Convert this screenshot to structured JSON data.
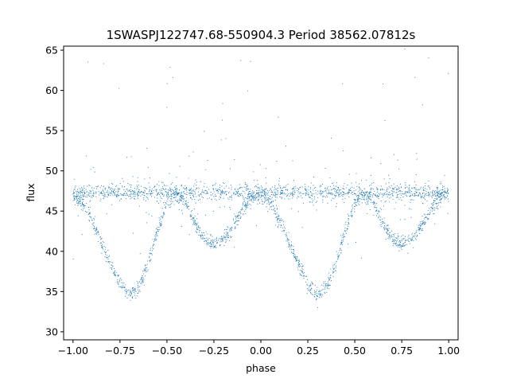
{
  "chart_data": {
    "type": "scatter",
    "title": "1SWASPJ122747.68-550904.3 Period 38562.07812s",
    "xlabel": "phase",
    "ylabel": "flux",
    "xlim": [
      -1.05,
      1.05
    ],
    "ylim": [
      29.0,
      65.5
    ],
    "x_ticks": [
      -1.0,
      -0.75,
      -0.5,
      -0.25,
      0.0,
      0.25,
      0.5,
      0.75,
      1.0
    ],
    "x_tick_labels": [
      "−1.00",
      "−0.75",
      "−0.50",
      "−0.25",
      "0.00",
      "0.25",
      "0.50",
      "0.75",
      "1.00"
    ],
    "y_ticks": [
      30,
      35,
      40,
      45,
      50,
      55,
      60,
      65
    ],
    "y_tick_labels": [
      "30",
      "35",
      "40",
      "45",
      "50",
      "55",
      "60",
      "65"
    ],
    "grid": false,
    "legend": "none",
    "marker_color": "#1f77b4",
    "series": [
      {
        "name": "",
        "baseline_flux": 47.3,
        "points_per_unit_phase_sampled": 1,
        "profile_phase": [
          -1.0,
          -0.95,
          -0.9,
          -0.85,
          -0.8,
          -0.75,
          -0.7,
          -0.65,
          -0.6,
          -0.55,
          -0.5,
          -0.45,
          -0.4,
          -0.35,
          -0.3,
          -0.25,
          -0.2,
          -0.15,
          -0.1,
          -0.05,
          0.0,
          0.05,
          0.1,
          0.15,
          0.2,
          0.25,
          0.3,
          0.35,
          0.4,
          0.45,
          0.5,
          0.55,
          0.6,
          0.65,
          0.7,
          0.75,
          0.8,
          0.85,
          0.9,
          0.95,
          1.0
        ],
        "profile_flux": [
          47.0,
          46.0,
          44.0,
          41.0,
          38.5,
          36.0,
          34.5,
          35.5,
          38.5,
          42.5,
          46.0,
          47.2,
          46.0,
          43.5,
          41.5,
          41.0,
          41.5,
          43.0,
          45.0,
          46.8,
          47.0,
          46.0,
          44.0,
          41.0,
          38.5,
          36.0,
          34.5,
          35.5,
          38.5,
          42.5,
          46.0,
          47.2,
          46.0,
          43.5,
          41.5,
          41.0,
          41.5,
          43.0,
          45.0,
          46.8,
          47.0
        ]
      }
    ]
  }
}
